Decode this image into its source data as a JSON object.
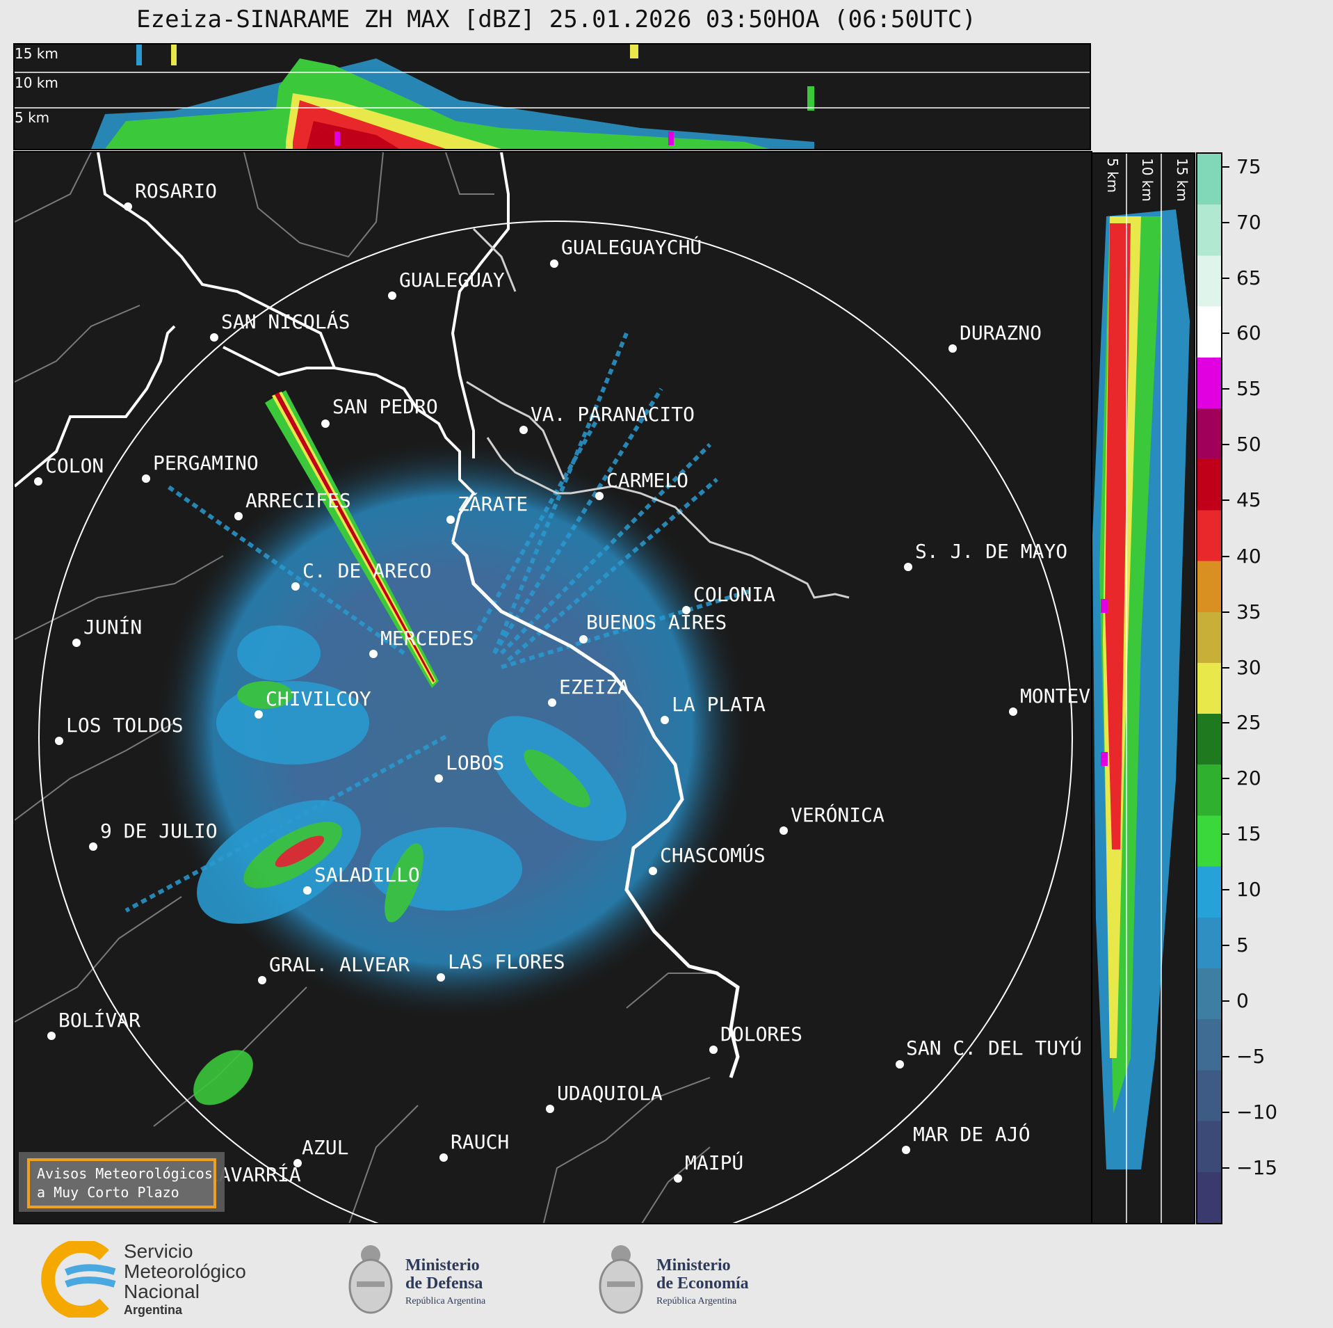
{
  "title": "Ezeiza-SINARAME ZH MAX [dBZ] 25.01.2026 03:50HOA (06:50UTC)",
  "top_panel": {
    "height_labels": [
      "15 km",
      "10 km",
      "5 km"
    ]
  },
  "side_panel": {
    "height_labels": [
      "5 km",
      "10 km",
      "15 km"
    ]
  },
  "colorbar": {
    "ticks": [
      "75",
      "70",
      "65",
      "60",
      "55",
      "50",
      "45",
      "40",
      "35",
      "30",
      "25",
      "20",
      "15",
      "10",
      "5",
      "0",
      "−5",
      "−10",
      "−15"
    ],
    "colors": [
      "#3b3a6e",
      "#3c4a78",
      "#3e5b85",
      "#3f6c93",
      "#3f7ea3",
      "#2f8fc2",
      "#25a3d8",
      "#3ad83a",
      "#2fb12f",
      "#1f7a1f",
      "#e8e84a",
      "#c8b038",
      "#d99020",
      "#e8282a",
      "#c00018",
      "#a0005a",
      "#e000e0",
      "#ffffff",
      "#dff5ec",
      "#b0e8d2",
      "#80d8b8"
    ]
  },
  "cities": [
    {
      "name": "ROSARIO"
    },
    {
      "name": "GUALEGUAYCHÚ"
    },
    {
      "name": "GUALEGUAY"
    },
    {
      "name": "SAN NICOLÁS"
    },
    {
      "name": "DURAZNO"
    },
    {
      "name": "SAN PEDRO"
    },
    {
      "name": "VA. PARANACITO"
    },
    {
      "name": "COLON"
    },
    {
      "name": "PERGAMINO"
    },
    {
      "name": "CARMELO"
    },
    {
      "name": "ARRECIFES"
    },
    {
      "name": "ZÁRATE"
    },
    {
      "name": "S. J. DE MAYO"
    },
    {
      "name": "C. DE ARECO"
    },
    {
      "name": "COLONIA"
    },
    {
      "name": "JUNÍN"
    },
    {
      "name": "BUENOS AIRES"
    },
    {
      "name": "MERCEDES"
    },
    {
      "name": "MONTEV"
    },
    {
      "name": "EZEIZA"
    },
    {
      "name": "CHIVILCOY"
    },
    {
      "name": "LA PLATA"
    },
    {
      "name": "LOS TOLDOS"
    },
    {
      "name": "LOBOS"
    },
    {
      "name": "VERÓNICA"
    },
    {
      "name": "9 DE JULIO"
    },
    {
      "name": "CHASCOMÚS"
    },
    {
      "name": "SALADILLO"
    },
    {
      "name": "GRAL. ALVEAR"
    },
    {
      "name": "LAS FLORES"
    },
    {
      "name": "BOLÍVAR"
    },
    {
      "name": "DOLORES"
    },
    {
      "name": "SAN C. DEL TUYÚ"
    },
    {
      "name": "UDAQUIOLA"
    },
    {
      "name": "RAUCH"
    },
    {
      "name": "MAR DE AJÓ"
    },
    {
      "name": "AZUL"
    },
    {
      "name": "OLAVARRÍA"
    },
    {
      "name": "MAIPÚ"
    }
  ],
  "notice": {
    "line1": "Avisos Meteorológicos",
    "line2": "a Muy Corto Plazo"
  },
  "footer": {
    "smn": {
      "line1": "Servicio",
      "line2": "Meteorológico",
      "line3": "Nacional",
      "line4": "Argentina"
    },
    "defensa": {
      "line1": "Ministerio",
      "line2": "de Defensa",
      "line3": "República Argentina"
    },
    "economia": {
      "line1": "Ministerio",
      "line2": "de Economía",
      "line3": "República Argentina"
    }
  }
}
